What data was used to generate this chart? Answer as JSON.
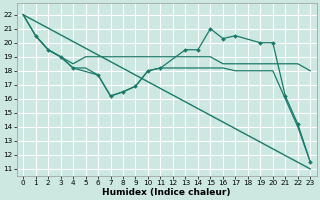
{
  "xlabel": "Humidex (Indice chaleur)",
  "bg_color": "#cce8e0",
  "grid_color": "#ffffff",
  "line_color": "#1a7a6a",
  "xlim": [
    -0.5,
    23.5
  ],
  "ylim": [
    10.5,
    22.8
  ],
  "yticks": [
    11,
    12,
    13,
    14,
    15,
    16,
    17,
    18,
    19,
    20,
    21,
    22
  ],
  "xticks": [
    0,
    1,
    2,
    3,
    4,
    5,
    6,
    7,
    8,
    9,
    10,
    11,
    12,
    13,
    14,
    15,
    16,
    17,
    18,
    19,
    20,
    21,
    22,
    23
  ],
  "lines": [
    {
      "x": [
        0,
        23
      ],
      "y": [
        22,
        11
      ],
      "marker": false,
      "lw": 1.0
    },
    {
      "x": [
        0,
        1,
        2,
        3,
        4,
        5,
        6,
        7,
        8,
        9,
        10,
        11,
        12,
        13,
        14,
        15,
        16,
        17,
        18,
        19,
        20,
        21,
        22,
        23
      ],
      "y": [
        22,
        20.5,
        19.5,
        19.0,
        18.5,
        19.0,
        19.0,
        19.0,
        19.0,
        19.0,
        19.0,
        19.0,
        19.0,
        19.0,
        19.0,
        19.0,
        18.5,
        18.5,
        18.5,
        18.5,
        18.5,
        18.5,
        18.5,
        18.0
      ],
      "marker": false,
      "lw": 0.9
    },
    {
      "x": [
        0,
        1,
        2,
        3,
        4,
        5,
        6,
        7,
        8,
        9,
        10,
        11,
        12,
        13,
        14,
        15,
        16,
        17,
        18,
        19,
        20,
        21,
        22,
        23
      ],
      "y": [
        22,
        20.5,
        19.5,
        19.0,
        18.2,
        18.2,
        17.7,
        16.2,
        16.5,
        16.9,
        18.0,
        18.2,
        18.2,
        18.2,
        18.2,
        18.2,
        18.2,
        18.0,
        18.0,
        18.0,
        18.0,
        16.0,
        14.0,
        11.5
      ],
      "marker": false,
      "lw": 0.9
    },
    {
      "x": [
        1,
        2,
        3,
        4,
        6,
        7,
        8,
        9,
        10,
        11,
        13,
        14,
        15,
        16,
        17,
        19,
        20,
        21,
        22,
        23
      ],
      "y": [
        20.5,
        19.5,
        19.0,
        18.2,
        17.7,
        16.2,
        16.5,
        16.9,
        18.0,
        18.2,
        19.5,
        19.5,
        21.0,
        20.3,
        20.5,
        20.0,
        20.0,
        16.2,
        14.2,
        11.5
      ],
      "marker": true,
      "lw": 0.9
    }
  ]
}
